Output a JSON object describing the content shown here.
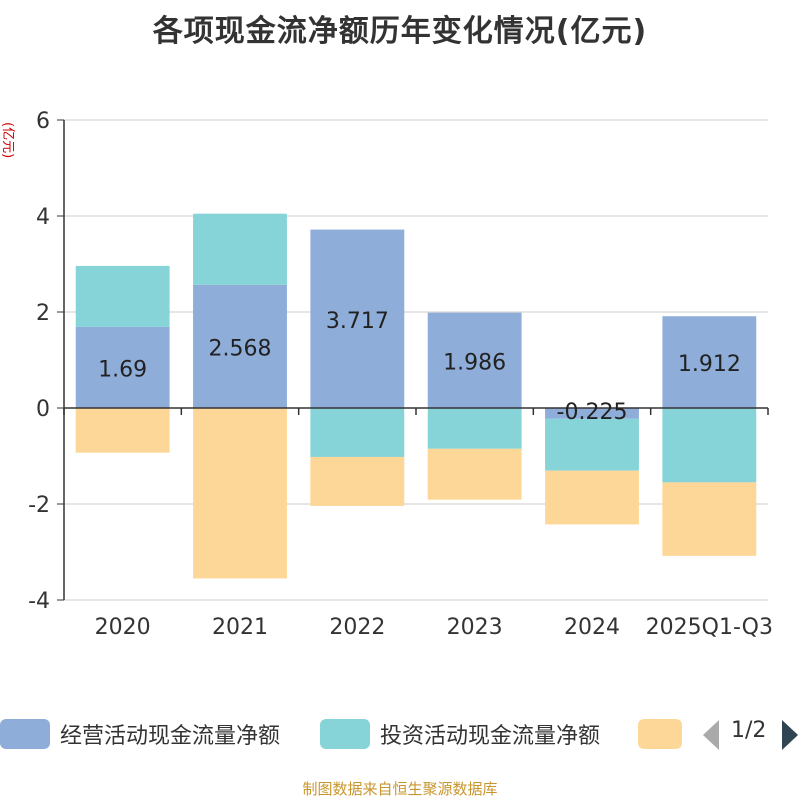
{
  "chart_data": {
    "type": "bar",
    "stacked": true,
    "title": "各项现金流净额历年变化情况(亿元)",
    "ylabel": "(亿元)",
    "ylim": [
      -4,
      6
    ],
    "yticks": [
      6,
      4,
      2,
      0,
      -2,
      -4
    ],
    "grid": true,
    "categories": [
      "2020",
      "2021",
      "2022",
      "2023",
      "2024",
      "2025Q1-Q3"
    ],
    "series": [
      {
        "name": "经营活动现金流量净额",
        "color": "#8fadd9",
        "values": [
          1.69,
          2.568,
          3.717,
          1.986,
          -0.225,
          1.912
        ],
        "labels": [
          "1.69",
          "2.568",
          "3.717",
          "1.986",
          "-0.225",
          "1.912"
        ]
      },
      {
        "name": "投资活动现金流量净额",
        "color": "#86d4d8",
        "values": [
          1.27,
          1.48,
          -1.02,
          -0.85,
          -1.08,
          -1.55
        ]
      },
      {
        "name": "",
        "color": "#fdd797",
        "values": [
          -0.93,
          -3.55,
          -1.02,
          -1.06,
          -1.12,
          -1.53
        ]
      }
    ]
  },
  "legend": {
    "items": [
      {
        "label": "经营活动现金流量净额",
        "color": "#8fadd9"
      },
      {
        "label": "投资活动现金流量净额",
        "color": "#86d4d8"
      },
      {
        "label": "",
        "color": "#fdd797"
      }
    ],
    "page": "1/2"
  },
  "source": "制图数据来自恒生聚源数据库"
}
